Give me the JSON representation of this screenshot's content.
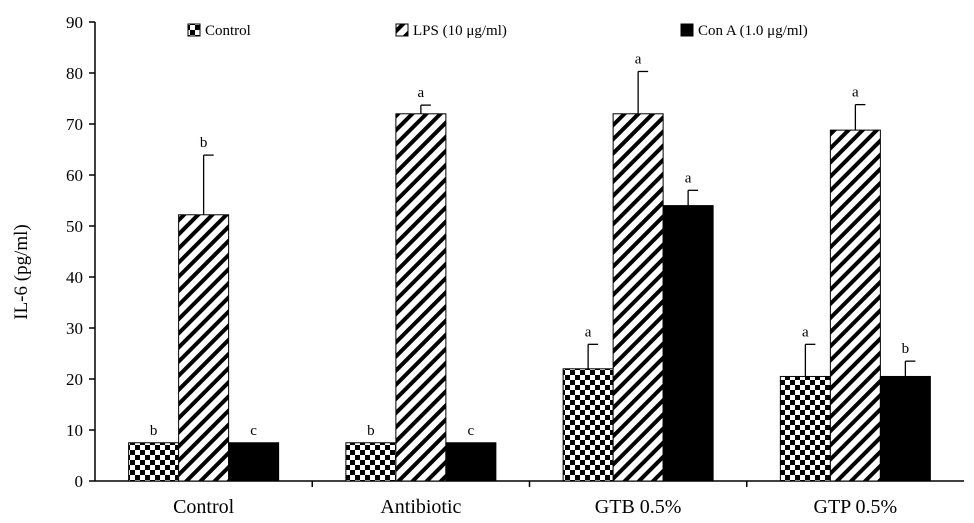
{
  "chart_data": {
    "type": "bar",
    "title": "",
    "xlabel": "",
    "ylabel": "IL-6 (pg/ml)",
    "ylim": [
      0,
      90
    ],
    "yticks": [
      0,
      10,
      20,
      30,
      40,
      50,
      60,
      70,
      80,
      90
    ],
    "grid": false,
    "legend_position": "top",
    "categories": [
      "Control",
      "Antibiotic",
      "GTB 0.5%",
      "GTP 0.5%"
    ],
    "series": [
      {
        "name": "Control",
        "pattern": "checkerboard",
        "values": [
          7.5,
          7.5,
          22,
          20.5
        ],
        "errors": [
          0,
          0,
          4.8,
          6.3
        ],
        "sig": [
          "b",
          "b",
          "a",
          "a"
        ]
      },
      {
        "name": "LPS (10 μg/ml)",
        "pattern": "diagonal-hatch",
        "values": [
          52.2,
          72,
          72,
          68.8
        ],
        "errors": [
          11.7,
          1.7,
          8.3,
          5
        ],
        "sig": [
          "b",
          "a",
          "a",
          "a"
        ]
      },
      {
        "name": "Con A (1.0 μg/ml)",
        "pattern": "solid",
        "values": [
          7.5,
          7.5,
          54,
          20.5
        ],
        "errors": [
          0,
          0,
          3,
          3
        ],
        "sig": [
          "c",
          "c",
          "a",
          "b"
        ]
      }
    ]
  },
  "colors": {
    "bar_fill": "#000000",
    "background": "#ffffff",
    "axis": "#000000"
  }
}
